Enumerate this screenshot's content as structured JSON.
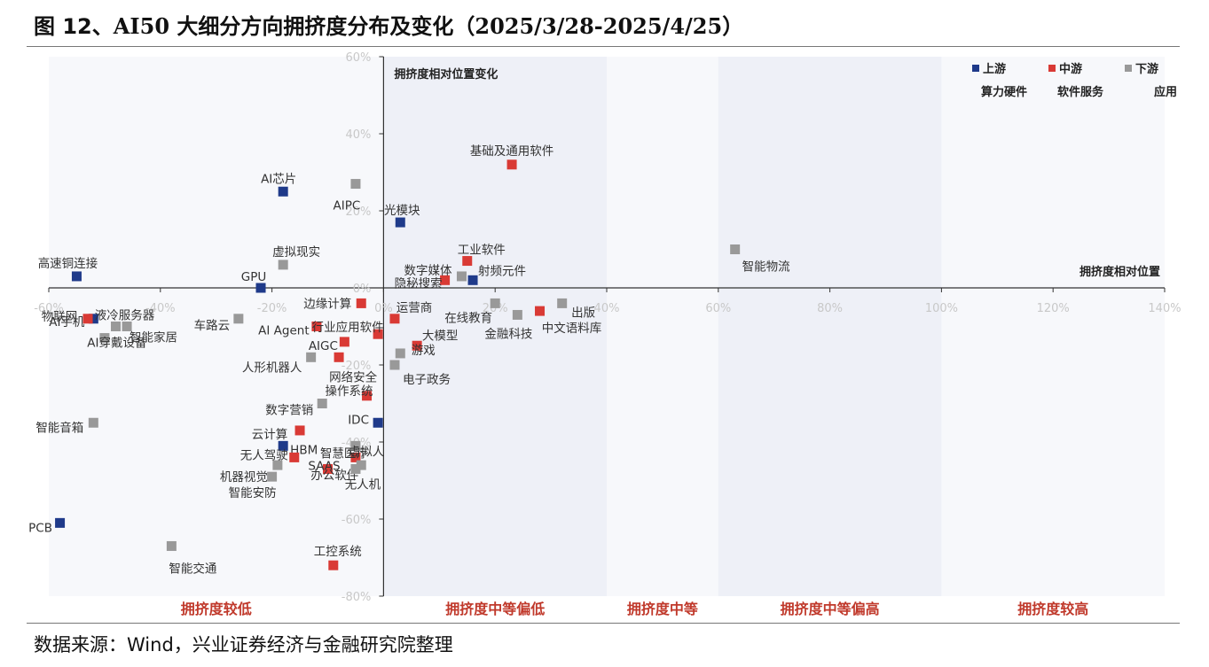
{
  "title": {
    "part1": "图 12、",
    "part2": "AI50",
    "part3": " 大细分方向拥挤度分布及变化（",
    "part4": "2025/3/28-2025/4/25",
    "part5": "）"
  },
  "source": "数据来源：Wind，兴业证券经济与金融研究院整理",
  "colors": {
    "upstream": "#1f3a8a",
    "midstream": "#d93a35",
    "downstream": "#999999",
    "band": "#eef0f7",
    "zone_label": "#c0392b",
    "axis_label": "#c8c8c8"
  },
  "chart_data": {
    "type": "scatter",
    "xlabel": "拥挤度相对位置",
    "ylabel": "拥挤度相对位置变化",
    "xlim": [
      -60,
      140
    ],
    "ylim": [
      -80,
      60
    ],
    "x_ticks": [
      "-60%",
      "-40%",
      "-20%",
      "0%",
      "20%",
      "40%",
      "60%",
      "80%",
      "100%",
      "120%",
      "140%"
    ],
    "y_ticks": [
      "60%",
      "40%",
      "20%",
      "0%",
      "-20%",
      "-40%",
      "-60%",
      "-80%"
    ],
    "grid": false,
    "legend": {
      "placement": "top-right",
      "entries": [
        {
          "name": "上游",
          "sub": "算力硬件",
          "series": "upstream"
        },
        {
          "name": "中游",
          "sub": "软件服务",
          "series": "midstream"
        },
        {
          "name": "下游",
          "sub": "应用",
          "series": "downstream"
        }
      ]
    },
    "zones": [
      {
        "label": "拥挤度较低",
        "from": -60,
        "to": 0,
        "shaded": false
      },
      {
        "label": "拥挤度中等偏低",
        "from": 0,
        "to": 40,
        "shaded": true
      },
      {
        "label": "拥挤度中等",
        "from": 40,
        "to": 60,
        "shaded": false
      },
      {
        "label": "拥挤度中等偏高",
        "from": 60,
        "to": 100,
        "shaded": true
      },
      {
        "label": "拥挤度较高",
        "from": 100,
        "to": 140,
        "shaded": false
      }
    ],
    "series": [
      {
        "name": "上游",
        "key": "upstream",
        "points": [
          {
            "label": "AI芯片",
            "x": -18,
            "y": 25
          },
          {
            "label": "光模块",
            "x": 3,
            "y": 17
          },
          {
            "label": "高速铜连接",
            "x": -55,
            "y": 3
          },
          {
            "label": "GPU",
            "x": -22,
            "y": 0
          },
          {
            "label": "射频元件",
            "x": 16,
            "y": 2
          },
          {
            "label": "AI手机",
            "x": -52,
            "y": -8
          },
          {
            "label": "IDC",
            "x": -1,
            "y": -35
          },
          {
            "label": "HBM",
            "x": -18,
            "y": -41
          },
          {
            "label": "PCB",
            "x": -58,
            "y": -61
          }
        ]
      },
      {
        "name": "中游",
        "key": "midstream",
        "points": [
          {
            "label": "基础及通用软件",
            "x": 23,
            "y": 32
          },
          {
            "label": "工业软件",
            "x": 15,
            "y": 7
          },
          {
            "label": "隐秘搜索",
            "x": 11,
            "y": 2
          },
          {
            "label": "中文语料库",
            "x": 28,
            "y": -6
          },
          {
            "label": "物联网",
            "x": -53,
            "y": -8
          },
          {
            "label": "边缘计算",
            "x": -4,
            "y": -4
          },
          {
            "label": "运营商",
            "x": 2,
            "y": -8
          },
          {
            "label": "AI Agent",
            "x": -12,
            "y": -10
          },
          {
            "label": "行业应用软件",
            "x": -1,
            "y": -12
          },
          {
            "label": "AIGC",
            "x": -7,
            "y": -14
          },
          {
            "label": "大模型",
            "x": 6,
            "y": -15
          },
          {
            "label": "网络安全",
            "x": -8,
            "y": -18
          },
          {
            "label": "操作系统",
            "x": -3,
            "y": -28
          },
          {
            "label": "云计算",
            "x": -15,
            "y": -37
          },
          {
            "label": "无人驾驶",
            "x": -16,
            "y": -44
          },
          {
            "label": "SAAS",
            "x": -10,
            "y": -47
          },
          {
            "label": "智慧医疗",
            "x": -5,
            "y": -44
          },
          {
            "label": "工控系统",
            "x": -9,
            "y": -72
          }
        ]
      },
      {
        "name": "下游",
        "key": "downstream",
        "points": [
          {
            "label": "AIPC",
            "x": -5,
            "y": 27
          },
          {
            "label": "虚拟现实",
            "x": -18,
            "y": 6
          },
          {
            "label": "智能物流",
            "x": 63,
            "y": 10
          },
          {
            "label": "数字媒体",
            "x": 14,
            "y": 3
          },
          {
            "label": "出版",
            "x": 32,
            "y": -4
          },
          {
            "label": "在线教育",
            "x": 20,
            "y": -4
          },
          {
            "label": "金融科技",
            "x": 24,
            "y": -7
          },
          {
            "label": "液冷服务器",
            "x": -48,
            "y": -10
          },
          {
            "label": "AI穿戴设备",
            "x": -50,
            "y": -13
          },
          {
            "label": "智能家居",
            "x": -46,
            "y": -10
          },
          {
            "label": "车路云",
            "x": -26,
            "y": -8
          },
          {
            "label": "人形机器人",
            "x": -13,
            "y": -18
          },
          {
            "label": "游戏",
            "x": 3,
            "y": -17
          },
          {
            "label": "电子政务",
            "x": 2,
            "y": -20
          },
          {
            "label": "数字营销",
            "x": -11,
            "y": -30
          },
          {
            "label": "智能音箱",
            "x": -52,
            "y": -35
          },
          {
            "label": "机器视觉",
            "x": -19,
            "y": -46
          },
          {
            "label": "虚拟人",
            "x": -5,
            "y": -41
          },
          {
            "label": "办公软件",
            "x": -4,
            "y": -46
          },
          {
            "label": "无人机",
            "x": -5,
            "y": -47
          },
          {
            "label": "智能安防",
            "x": -20,
            "y": -49
          },
          {
            "label": "智能交通",
            "x": -38,
            "y": -67
          }
        ]
      }
    ]
  }
}
